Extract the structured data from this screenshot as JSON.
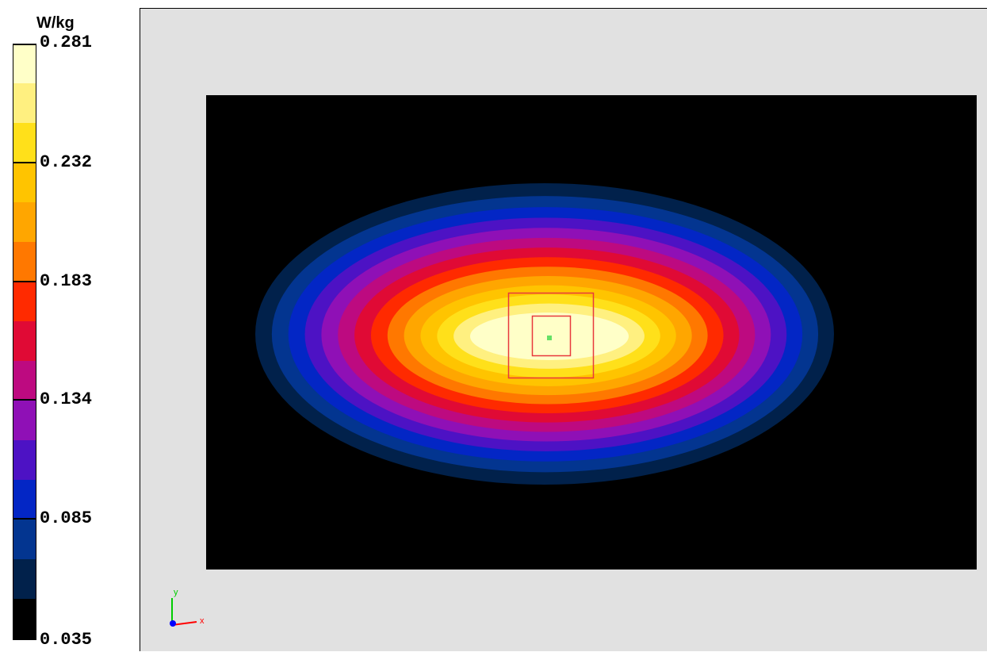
{
  "chart_data": {
    "type": "heatmap",
    "title": "",
    "unit_label": "W/kg",
    "colorbar": {
      "min": 0.035,
      "max": 0.281,
      "tick_labels": [
        "0.281",
        "0.232",
        "0.183",
        "0.134",
        "0.085",
        "0.035"
      ],
      "tick_values": [
        0.281,
        0.232,
        0.183,
        0.134,
        0.085,
        0.035
      ],
      "levels_bottom_to_top": [
        "#000000",
        "#01214b",
        "#033590",
        "#0326c5",
        "#4d12c4",
        "#8f10b6",
        "#bd0a80",
        "#e00a35",
        "#ff2a00",
        "#ff7800",
        "#ffa600",
        "#ffc400",
        "#ffe01a",
        "#fff080",
        "#ffffc8"
      ]
    },
    "field": {
      "background_color": "#000000",
      "peak_value": 0.281,
      "min_value": 0.035,
      "shape": "elliptical contour bands centred near peak"
    },
    "markers": {
      "outer_box_color": "#e8383d",
      "inner_box_color": "#e8383d",
      "peak_point_color": "#66e066"
    },
    "axes_triad": {
      "x_label": "x",
      "y_label": "y",
      "x_color": "#ff0000",
      "y_color": "#00cc00",
      "z_color": "#0000ff"
    },
    "viewport_background": "#e1e1e1",
    "grid": false,
    "legend_position": "left"
  }
}
